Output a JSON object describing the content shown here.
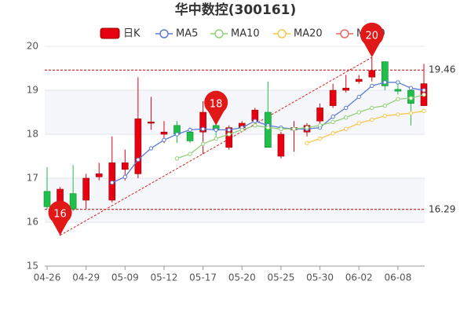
{
  "chart_data": {
    "type": "candlestick",
    "title": "华中数控(300161)",
    "categories": [
      "04-26",
      null,
      null,
      "04-29",
      null,
      null,
      "05-09",
      null,
      null,
      "05-12",
      null,
      null,
      "05-17",
      null,
      null,
      "05-20",
      null,
      null,
      "05-25",
      null,
      null,
      "05-30",
      null,
      null,
      "06-02",
      null,
      null,
      "06-08",
      null,
      null
    ],
    "candle_name": "日K",
    "up_color": "#e60012",
    "down_color": "#1fbf4a",
    "open": [
      16.7,
      16.3,
      16.65,
      16.5,
      17.03,
      16.5,
      17.2,
      17.1,
      18.25,
      18.0,
      18.2,
      18.05,
      18.05,
      18.2,
      17.7,
      18.15,
      18.3,
      18.5,
      17.5,
      18.1,
      18.05,
      18.3,
      18.65,
      19.0,
      19.2,
      19.3,
      19.65,
      19.02,
      19.0,
      18.65
    ],
    "close": [
      16.35,
      16.75,
      16.3,
      17.0,
      17.1,
      17.35,
      17.35,
      18.35,
      18.28,
      18.05,
      18.0,
      17.85,
      18.5,
      18.1,
      18.15,
      18.25,
      18.55,
      17.7,
      18.0,
      18.15,
      18.2,
      18.6,
      19.0,
      19.05,
      19.25,
      19.45,
      19.1,
      18.98,
      18.7,
      19.15
    ],
    "high": [
      17.25,
      16.8,
      17.3,
      17.1,
      17.35,
      17.95,
      17.65,
      19.3,
      18.85,
      18.3,
      18.3,
      18.15,
      18.75,
      18.45,
      18.2,
      18.3,
      18.6,
      19.2,
      18.05,
      18.3,
      18.25,
      18.7,
      19.15,
      19.35,
      19.35,
      19.75,
      19.65,
      19.15,
      19.05,
      19.6
    ],
    "low": [
      16.3,
      15.7,
      16.25,
      16.3,
      16.95,
      16.45,
      16.95,
      17.0,
      18.1,
      17.8,
      17.8,
      17.8,
      17.55,
      17.95,
      17.65,
      18.05,
      18.2,
      17.7,
      17.45,
      17.6,
      17.95,
      18.25,
      18.6,
      18.95,
      19.15,
      19.2,
      19.0,
      18.9,
      18.2,
      18.65
    ],
    "series": [
      {
        "name": "MA5",
        "color": "#5b7bd5",
        "values": [
          null,
          null,
          null,
          null,
          null,
          16.9,
          17.03,
          17.42,
          17.68,
          17.87,
          18.0,
          18.1,
          18.12,
          18.1,
          18.1,
          18.15,
          18.3,
          18.2,
          18.15,
          18.12,
          18.12,
          18.15,
          18.4,
          18.6,
          18.85,
          19.1,
          19.18,
          19.18,
          19.05,
          19.0
        ]
      },
      {
        "name": "MA10",
        "color": "#93d07a",
        "values": [
          null,
          null,
          null,
          null,
          null,
          null,
          null,
          null,
          null,
          null,
          17.45,
          17.55,
          17.78,
          17.9,
          18.0,
          18.1,
          18.2,
          18.15,
          18.12,
          18.12,
          18.15,
          18.2,
          18.28,
          18.38,
          18.5,
          18.6,
          18.65,
          18.8,
          18.82,
          18.9
        ]
      },
      {
        "name": "MA20",
        "color": "#f5c84c",
        "values": [
          null,
          null,
          null,
          null,
          null,
          null,
          null,
          null,
          null,
          null,
          null,
          null,
          null,
          null,
          null,
          null,
          null,
          null,
          null,
          null,
          17.8,
          17.9,
          18.02,
          18.12,
          18.25,
          18.33,
          18.42,
          18.45,
          18.48,
          18.53
        ]
      },
      {
        "name": "MA30",
        "color": "#ee6666",
        "values": [
          null,
          null,
          null,
          null,
          null,
          null,
          null,
          null,
          null,
          null,
          null,
          null,
          null,
          null,
          null,
          null,
          null,
          null,
          null,
          null,
          null,
          null,
          null,
          null,
          null,
          null,
          null,
          null,
          null,
          null
        ]
      }
    ],
    "ylim": [
      15,
      20
    ],
    "yticks": [
      15,
      16,
      17,
      18,
      19,
      20
    ],
    "grid": true,
    "reference_lines": [
      {
        "value": 19.46,
        "label": "19.46"
      },
      {
        "value": 16.29,
        "label": "16.29"
      }
    ],
    "markers": [
      {
        "at": 1,
        "value": 15.7,
        "label": "16"
      },
      {
        "at": 13,
        "value": 18.2,
        "label": "18"
      },
      {
        "at": 25,
        "value": 19.75,
        "label": "20"
      }
    ]
  }
}
